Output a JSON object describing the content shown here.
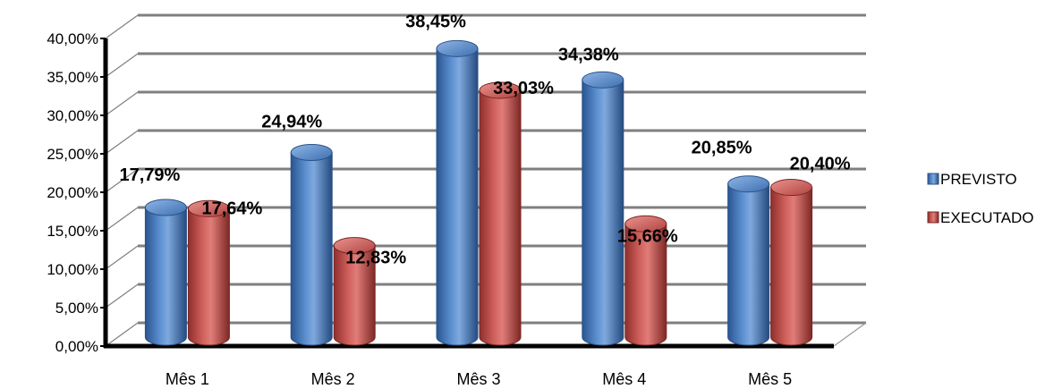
{
  "chart_data": {
    "type": "bar",
    "style": "3d-cylinder",
    "categories": [
      "Mês 1",
      "Mês 2",
      "Mês 3",
      "Mês 4",
      "Mês 5"
    ],
    "series": [
      {
        "name": "PREVISTO",
        "values": [
          17.79,
          24.94,
          38.45,
          34.38,
          20.85
        ],
        "labels": [
          "17,79%",
          "24,94%",
          "38,45%",
          "34,38%",
          "20,85%"
        ],
        "color": "#4f81bd"
      },
      {
        "name": "EXECUTADO",
        "values": [
          17.64,
          12.83,
          33.03,
          15.66,
          20.4
        ],
        "labels": [
          "17,64%",
          "12,83%",
          "33,03%",
          "15,66%",
          "20,40%"
        ],
        "color": "#c0504d"
      }
    ],
    "yticks": [
      "0,00%",
      "5,00%",
      "10,00%",
      "15,00%",
      "20,00%",
      "25,00%",
      "30,00%",
      "35,00%",
      "40,00%"
    ],
    "ylim": [
      0,
      40
    ],
    "grid": true,
    "legend_position": "right"
  }
}
